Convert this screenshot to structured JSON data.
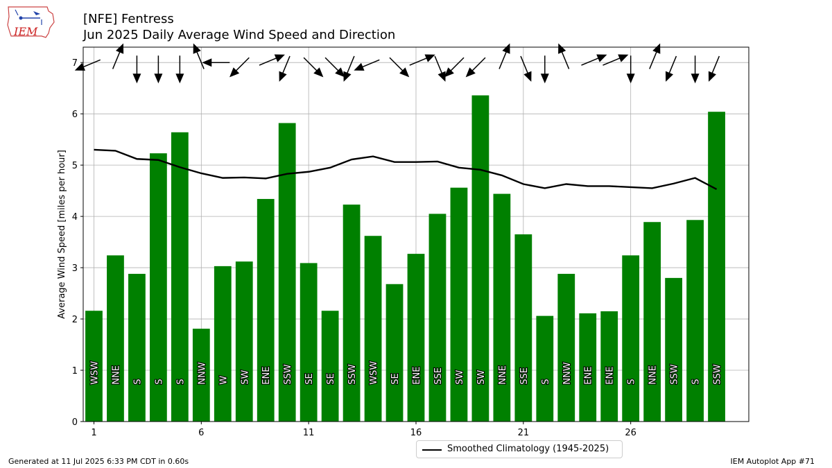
{
  "header": {
    "title": "[NFE] Fentress",
    "subtitle": "Jun 2025 Daily Average Wind Speed and Direction"
  },
  "logo": {
    "text": "IEM"
  },
  "footer": {
    "generated": "Generated at 11 Jul 2025 6:33 PM CDT in 0.60s",
    "app": "IEM Autoplot App #71"
  },
  "legend": {
    "label": "Smoothed Climatology (1945-2025)"
  },
  "colors": {
    "bar": "#008000",
    "line": "#000000",
    "grid": "#b0b0b0"
  },
  "chart_data": {
    "type": "bar",
    "ylabel": "Average Wind Speed [miles per hour]",
    "ylim": [
      0,
      7.3
    ],
    "xlim": [
      0.5,
      31.5
    ],
    "yticks": [
      0,
      1,
      2,
      3,
      4,
      5,
      6,
      7
    ],
    "xticks": [
      1,
      6,
      11,
      16,
      21,
      26
    ],
    "grid": true,
    "legend_position": "bottom-center",
    "days": [
      1,
      2,
      3,
      4,
      5,
      6,
      7,
      8,
      9,
      10,
      11,
      12,
      13,
      14,
      15,
      16,
      17,
      18,
      19,
      20,
      21,
      22,
      23,
      24,
      25,
      26,
      27,
      28,
      29,
      30
    ],
    "speeds": [
      2.16,
      3.24,
      2.88,
      5.23,
      5.64,
      1.81,
      3.03,
      3.12,
      4.34,
      5.82,
      3.09,
      2.16,
      4.23,
      3.62,
      2.68,
      3.27,
      4.05,
      4.56,
      6.36,
      4.44,
      3.65,
      2.06,
      2.88,
      2.11,
      2.15,
      3.24,
      3.89,
      2.8,
      3.93,
      6.04
    ],
    "directions": [
      "WSW",
      "NNE",
      "S",
      "S",
      "S",
      "NNW",
      "W",
      "SW",
      "ENE",
      "SSW",
      "SE",
      "SE",
      "SSW",
      "WSW",
      "SE",
      "ENE",
      "SSE",
      "SW",
      "SW",
      "NNE",
      "SSE",
      "S",
      "NNW",
      "ENE",
      "ENE",
      "S",
      "NNE",
      "SSW",
      "S",
      "SSW"
    ],
    "arrow_degrees": [
      247.5,
      22.5,
      180,
      180,
      180,
      337.5,
      270,
      225,
      67.5,
      202.5,
      135,
      135,
      202.5,
      247.5,
      135,
      67.5,
      157.5,
      225,
      225,
      22.5,
      157.5,
      180,
      337.5,
      67.5,
      67.5,
      180,
      22.5,
      202.5,
      180,
      202.5
    ],
    "climatology": {
      "name": "Smoothed Climatology (1945-2025)",
      "values": [
        5.3,
        5.28,
        5.12,
        5.1,
        4.96,
        4.84,
        4.75,
        4.76,
        4.74,
        4.83,
        4.87,
        4.95,
        5.11,
        5.17,
        5.06,
        5.06,
        5.07,
        4.95,
        4.91,
        4.8,
        4.63,
        4.55,
        4.63,
        4.59,
        4.59,
        4.57,
        4.55,
        4.64,
        4.75,
        4.53
      ]
    }
  }
}
